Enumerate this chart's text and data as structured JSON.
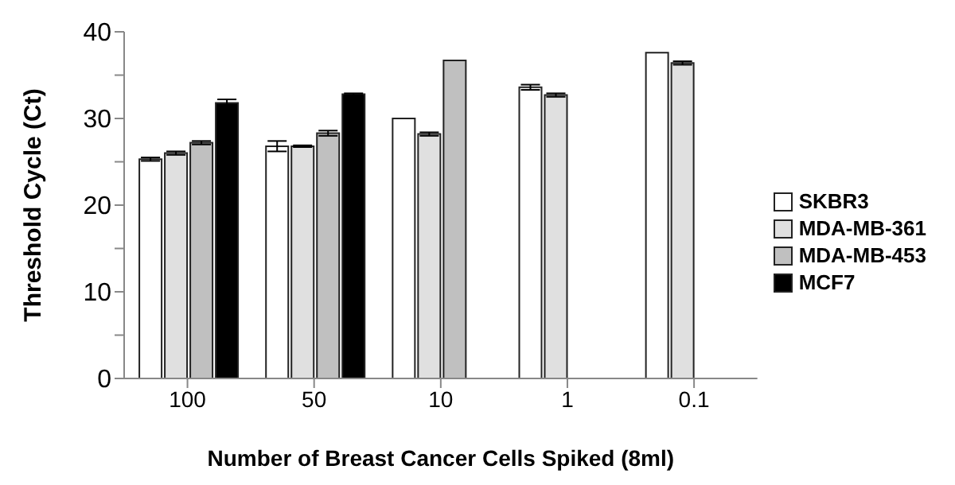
{
  "chart_data": {
    "type": "bar",
    "ylabel": "Threshold Cycle (Ct)",
    "xlabel": "Number of Breast Cancer Cells Spiked (8ml)",
    "categories": [
      "100",
      "50",
      "10",
      "1",
      "0.1"
    ],
    "ylim": [
      0,
      40
    ],
    "yticks": [
      0,
      {
        "value": 5,
        "label": null
      },
      10,
      {
        "value": 15,
        "label": null
      },
      20,
      {
        "value": 25,
        "label": null
      },
      30,
      {
        "value": 35,
        "label": null
      },
      40
    ],
    "grid": false,
    "legend": "right",
    "series": [
      {
        "name": "SKBR3",
        "color": "#ffffff",
        "values": [
          25.3,
          26.8,
          30.0,
          33.6,
          37.6
        ],
        "errors": [
          0.2,
          0.6,
          null,
          0.3,
          null
        ]
      },
      {
        "name": "MDA-MB-361",
        "color": "#e0e0e0",
        "values": [
          26.0,
          26.8,
          28.2,
          32.7,
          36.4
        ],
        "errors": [
          0.2,
          0.1,
          0.2,
          0.2,
          0.2
        ]
      },
      {
        "name": "MDA-MB-453",
        "color": "#c0c0c0",
        "values": [
          27.2,
          28.3,
          36.7,
          null,
          null
        ],
        "errors": [
          0.2,
          0.3,
          null,
          null,
          null
        ]
      },
      {
        "name": "MCF7",
        "color": "#000000",
        "values": [
          31.8,
          32.8,
          null,
          null,
          null
        ],
        "errors": [
          0.4,
          0.1,
          null,
          null,
          null
        ]
      }
    ]
  }
}
